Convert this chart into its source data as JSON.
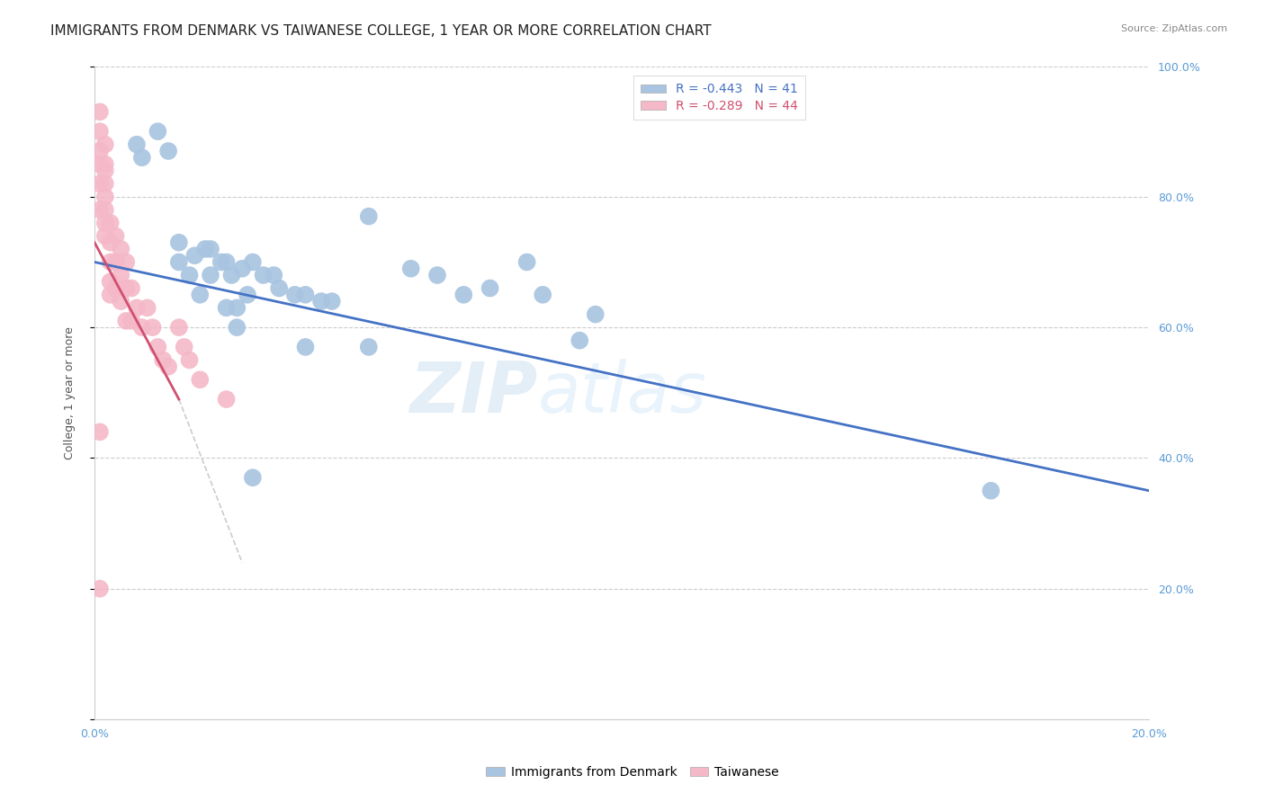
{
  "title": "IMMIGRANTS FROM DENMARK VS TAIWANESE COLLEGE, 1 YEAR OR MORE CORRELATION CHART",
  "source": "Source: ZipAtlas.com",
  "ylabel_label": "College, 1 year or more",
  "x_min": 0.0,
  "x_max": 0.2,
  "y_min": 0.0,
  "y_max": 1.0,
  "denmark_R": "-0.443",
  "denmark_N": "41",
  "taiwanese_R": "-0.289",
  "taiwanese_N": "44",
  "blue_color": "#a8c4e0",
  "blue_line_color": "#4472c4",
  "pink_color": "#f4b8c8",
  "pink_line_color": "#d05070",
  "legend_blue_fill": "#a8c4e0",
  "legend_pink_fill": "#f4b8c8",
  "denmark_x": [
    0.008,
    0.009,
    0.012,
    0.014,
    0.016,
    0.016,
    0.018,
    0.019,
    0.02,
    0.021,
    0.022,
    0.022,
    0.024,
    0.025,
    0.025,
    0.026,
    0.027,
    0.027,
    0.028,
    0.029,
    0.03,
    0.032,
    0.034,
    0.035,
    0.038,
    0.04,
    0.04,
    0.043,
    0.045,
    0.06,
    0.065,
    0.07,
    0.075,
    0.082,
    0.085,
    0.092,
    0.095,
    0.03,
    0.052,
    0.17,
    0.052
  ],
  "denmark_y": [
    0.88,
    0.86,
    0.9,
    0.87,
    0.73,
    0.7,
    0.68,
    0.71,
    0.65,
    0.72,
    0.72,
    0.68,
    0.7,
    0.7,
    0.63,
    0.68,
    0.63,
    0.6,
    0.69,
    0.65,
    0.7,
    0.68,
    0.68,
    0.66,
    0.65,
    0.65,
    0.57,
    0.64,
    0.64,
    0.69,
    0.68,
    0.65,
    0.66,
    0.7,
    0.65,
    0.58,
    0.62,
    0.37,
    0.77,
    0.35,
    0.57
  ],
  "taiwanese_x": [
    0.001,
    0.001,
    0.001,
    0.001,
    0.001,
    0.002,
    0.002,
    0.002,
    0.002,
    0.002,
    0.002,
    0.003,
    0.003,
    0.003,
    0.003,
    0.003,
    0.004,
    0.004,
    0.004,
    0.005,
    0.005,
    0.005,
    0.006,
    0.006,
    0.006,
    0.007,
    0.007,
    0.008,
    0.009,
    0.01,
    0.011,
    0.012,
    0.013,
    0.014,
    0.016,
    0.017,
    0.018,
    0.02,
    0.025,
    0.001,
    0.001,
    0.002,
    0.002,
    0.001
  ],
  "taiwanese_y": [
    0.9,
    0.87,
    0.85,
    0.82,
    0.78,
    0.84,
    0.82,
    0.8,
    0.78,
    0.76,
    0.74,
    0.76,
    0.73,
    0.7,
    0.67,
    0.65,
    0.74,
    0.7,
    0.66,
    0.72,
    0.68,
    0.64,
    0.7,
    0.66,
    0.61,
    0.66,
    0.61,
    0.63,
    0.6,
    0.63,
    0.6,
    0.57,
    0.55,
    0.54,
    0.6,
    0.57,
    0.55,
    0.52,
    0.49,
    0.93,
    0.44,
    0.88,
    0.85,
    0.2
  ],
  "watermark_zip": "ZIP",
  "watermark_atlas": "atlas",
  "title_fontsize": 11,
  "axis_tick_fontsize": 9,
  "ylabel_fontsize": 9,
  "source_fontsize": 8,
  "right_tick_color": "#5b9bd5",
  "grid_color": "#cccccc"
}
